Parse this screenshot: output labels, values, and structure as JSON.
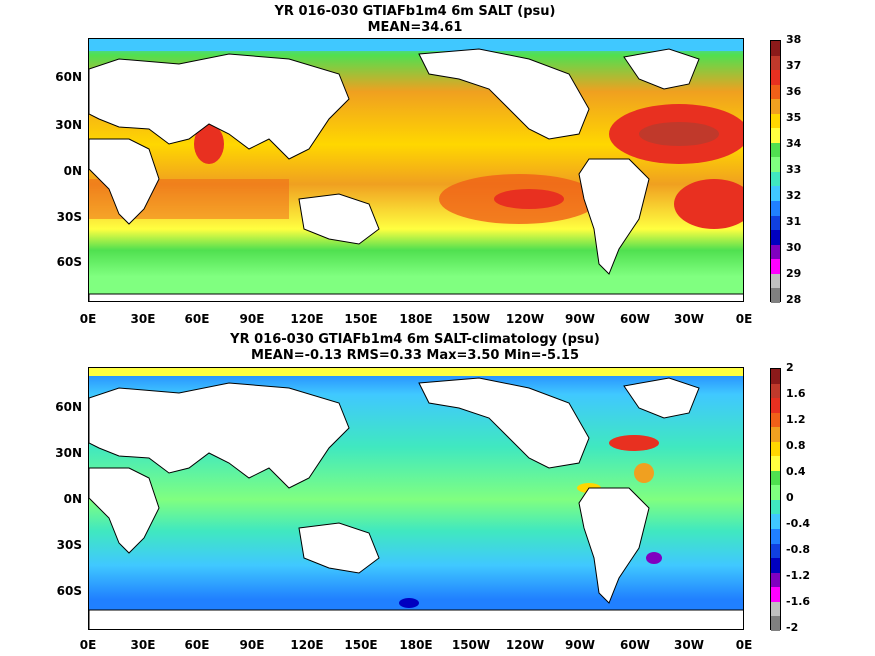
{
  "panels": [
    {
      "title_line1": "YR 016-030 GTIAFb1m4 6m SALT (psu)",
      "title_line2": "MEAN=34.61",
      "y_ticks": [
        "60N",
        "30N",
        "0N",
        "30S",
        "60S"
      ],
      "x_ticks": [
        "0E",
        "30E",
        "60E",
        "90E",
        "120E",
        "150E",
        "180E",
        "150W",
        "120W",
        "90W",
        "60W",
        "30W",
        "0E"
      ],
      "colorbar_labels": [
        "38",
        "37",
        "36",
        "35",
        "34",
        "33",
        "32",
        "31",
        "30",
        "29",
        "28"
      ],
      "colorbar_colors": [
        "#8b1a1a",
        "#c0392b",
        "#e83020",
        "#f06018",
        "#f0a020",
        "#ffd700",
        "#ffff40",
        "#50e050",
        "#80ff80",
        "#40e8c0",
        "#40c8ff",
        "#2080ff",
        "#1040e0",
        "#0000c0",
        "#8000c0",
        "#ff00ff",
        "#c0c0c0",
        "#808080"
      ]
    },
    {
      "title_line1": "YR 016-030 GTIAFb1m4 6m SALT-climatology (psu)",
      "title_line2": "MEAN=-0.13   RMS=0.33   Max=3.50   Min=-5.15",
      "y_ticks": [
        "60N",
        "30N",
        "0N",
        "30S",
        "60S"
      ],
      "x_ticks": [
        "0E",
        "30E",
        "60E",
        "90E",
        "120E",
        "150E",
        "180E",
        "150W",
        "120W",
        "90W",
        "60W",
        "30W",
        "0E"
      ],
      "colorbar_labels": [
        "2",
        "1.6",
        "1.2",
        "0.8",
        "0.4",
        "0",
        "-0.4",
        "-0.8",
        "-1.2",
        "-1.6",
        "-2"
      ],
      "colorbar_colors": [
        "#8b1a1a",
        "#c0392b",
        "#e83020",
        "#f06018",
        "#f0a020",
        "#ffd700",
        "#ffff40",
        "#50e050",
        "#80ff80",
        "#40e8c0",
        "#40c8ff",
        "#2080ff",
        "#1040e0",
        "#0000c0",
        "#8000c0",
        "#ff00ff",
        "#c0c0c0",
        "#808080"
      ]
    }
  ]
}
